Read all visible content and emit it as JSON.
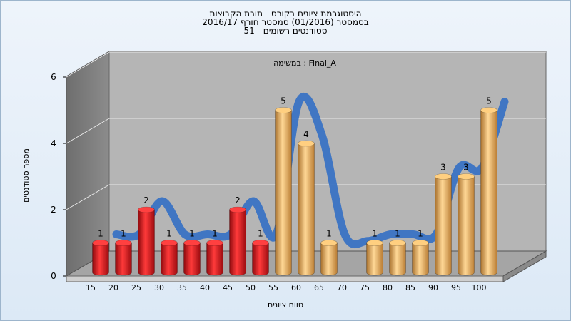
{
  "titles": [
    "היסטוגרמת ציונים בקורס - תורת הקבוצות",
    "בסמסטר (01/2016) סמסטר חורף 2016/17",
    "סטודנטים רשומים - 51"
  ],
  "colors": {
    "fail_bar": "#e0141a",
    "pass_bar": "#e8a84c",
    "trend": "#3a73c4",
    "back_wall": "#b5b5b5",
    "side_wall": "#7e7e7e",
    "floor": "#9a9a9a"
  },
  "chart_data": {
    "type": "bar",
    "annotation": "במשימה : Final_A",
    "xlabel": "טווח ציונים",
    "ylabel": "מספר סטודנטים",
    "ylim": [
      0,
      6
    ],
    "yticks": [
      0,
      2,
      4,
      6
    ],
    "grid": true,
    "categories": [
      "15",
      "20",
      "25",
      "30",
      "35",
      "40",
      "45",
      "50",
      "55",
      "60",
      "65",
      "70",
      "75",
      "80",
      "85",
      "90",
      "95",
      "100"
    ],
    "values": [
      1,
      1,
      2,
      1,
      1,
      1,
      2,
      1,
      5,
      4,
      1,
      0,
      1,
      1,
      1,
      3,
      3,
      5
    ],
    "status": [
      "fail",
      "fail",
      "fail",
      "fail",
      "fail",
      "fail",
      "fail",
      "fail",
      "pass",
      "pass",
      "pass",
      "pass",
      "pass",
      "pass",
      "pass",
      "pass",
      "pass",
      "pass"
    ],
    "trend_line": true
  }
}
